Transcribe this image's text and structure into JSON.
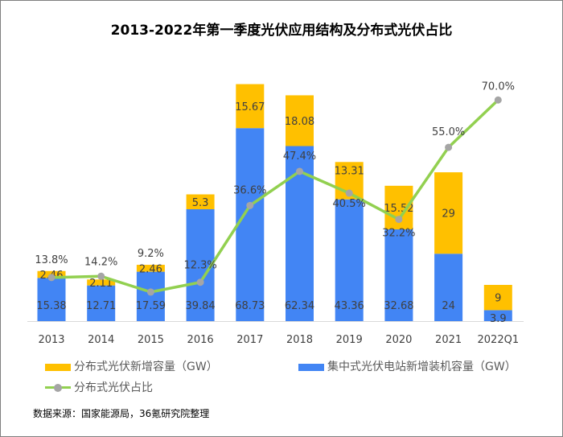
{
  "chart_data": {
    "type": "bar",
    "title": "2013-2022年第一季度光伏应用结构及分布式光伏占比",
    "categories": [
      "2013",
      "2014",
      "2015",
      "2016",
      "2017",
      "2018",
      "2019",
      "2020",
      "2021",
      "2022Q1"
    ],
    "stacked": true,
    "series": [
      {
        "name": "集中式光伏电站新增装机容量（GW）",
        "type": "bar",
        "color": "#4285F4",
        "values": [
          15.38,
          12.71,
          17.59,
          39.84,
          68.73,
          62.34,
          43.36,
          32.68,
          24,
          3.9
        ]
      },
      {
        "name": "分布式光伏新增容量（GW）",
        "type": "bar",
        "color": "#FFC000",
        "values": [
          2.46,
          2.11,
          2.46,
          5.3,
          15.67,
          18.08,
          13.31,
          15.52,
          29,
          9
        ]
      },
      {
        "name": "分布式光伏占比",
        "type": "line",
        "color": "#92D050",
        "marker_color": "#A5A5A5",
        "values": [
          13.8,
          14.2,
          9.2,
          12.3,
          36.6,
          47.4,
          40.5,
          32.2,
          55.0,
          70.0
        ],
        "value_labels": [
          "13.8%",
          "14.2%",
          "9.2%",
          "12.3%",
          "36.6%",
          "47.4%",
          "40.5%",
          "32.2%",
          "55.0%",
          "70.0%"
        ]
      }
    ],
    "ylim": [
      0,
      90
    ],
    "y2lim": [
      0,
      80
    ],
    "grid": false,
    "legend": "bottom"
  },
  "source": "数据来源：国家能源局，36氪研究院整理"
}
